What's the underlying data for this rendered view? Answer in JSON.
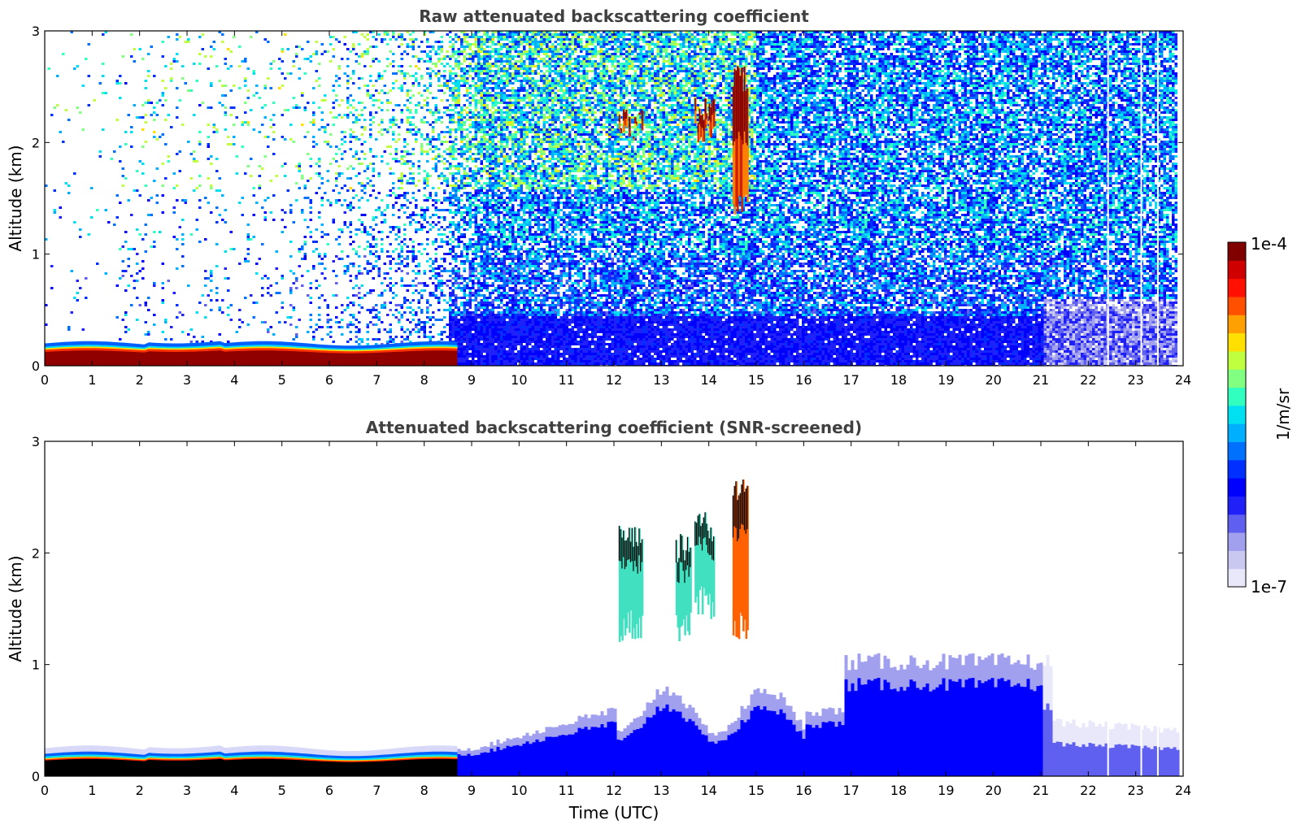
{
  "chart_data": [
    {
      "type": "heatmap",
      "title": "Raw attenuated backscattering coefficient",
      "xlabel": "",
      "ylabel": "Altitude (km)",
      "xlim": [
        0,
        24
      ],
      "ylim": [
        0,
        3
      ],
      "x_ticks": [
        "0",
        "1",
        "2",
        "3",
        "4",
        "5",
        "6",
        "7",
        "8",
        "9",
        "10",
        "11",
        "12",
        "13",
        "14",
        "15",
        "16",
        "17",
        "18",
        "19",
        "20",
        "21",
        "22",
        "23",
        "24"
      ],
      "y_ticks": [
        "0",
        "1",
        "2",
        "3"
      ],
      "features": [
        {
          "name": "boundary layer",
          "t_start": 0,
          "t_end": 8.7,
          "alt_top_km": 0.2,
          "level": "1e-4"
        },
        {
          "name": "cloud",
          "t_start": 12.1,
          "t_end": 12.6,
          "alt_bottom_km": 2.0,
          "alt_top_km": 2.3,
          "level": "high"
        },
        {
          "name": "cloud",
          "t_start": 13.7,
          "t_end": 14.1,
          "alt_bottom_km": 2.0,
          "alt_top_km": 2.4,
          "level": "high"
        },
        {
          "name": "cloud",
          "t_start": 14.5,
          "t_end": 14.8,
          "alt_bottom_km": 1.3,
          "alt_top_km": 2.7,
          "level": "high"
        }
      ]
    },
    {
      "type": "heatmap",
      "title": "Attenuated backscattering coefficient (SNR-screened)",
      "xlabel": "Time (UTC)",
      "ylabel": "Altitude (km)",
      "xlim": [
        0,
        24
      ],
      "ylim": [
        0,
        3
      ],
      "x_ticks": [
        "0",
        "1",
        "2",
        "3",
        "4",
        "5",
        "6",
        "7",
        "8",
        "9",
        "10",
        "11",
        "12",
        "13",
        "14",
        "15",
        "16",
        "17",
        "18",
        "19",
        "20",
        "21",
        "22",
        "23",
        "24"
      ],
      "y_ticks": [
        "0",
        "1",
        "2",
        "3"
      ],
      "features": [
        {
          "name": "boundary layer",
          "t_start": 0,
          "t_end": 8.7,
          "alt_top_km": 0.2,
          "level": "1e-4"
        },
        {
          "name": "aerosol layer",
          "t_start": 8.7,
          "t_end": 24,
          "alt_top_km": 1.05,
          "level": "low"
        },
        {
          "name": "cloud",
          "t_start": 12.1,
          "t_end": 14.8,
          "alt_bottom_km": 1.2,
          "alt_top_km": 2.7,
          "level": "high"
        }
      ]
    }
  ],
  "colorbar": {
    "label": "1/m/sr",
    "max_label": "1e-4",
    "min_label": "1e-7",
    "colors": [
      "#e8e8fa",
      "#c8c8f0",
      "#a0a0ee",
      "#6060f0",
      "#2020f8",
      "#0000ff",
      "#0030ff",
      "#0070ff",
      "#00b0ff",
      "#00e0f0",
      "#30ffc0",
      "#80ff80",
      "#c0ff40",
      "#ffe000",
      "#ffa000",
      "#ff5000",
      "#ff1000",
      "#d00000",
      "#800000"
    ]
  }
}
